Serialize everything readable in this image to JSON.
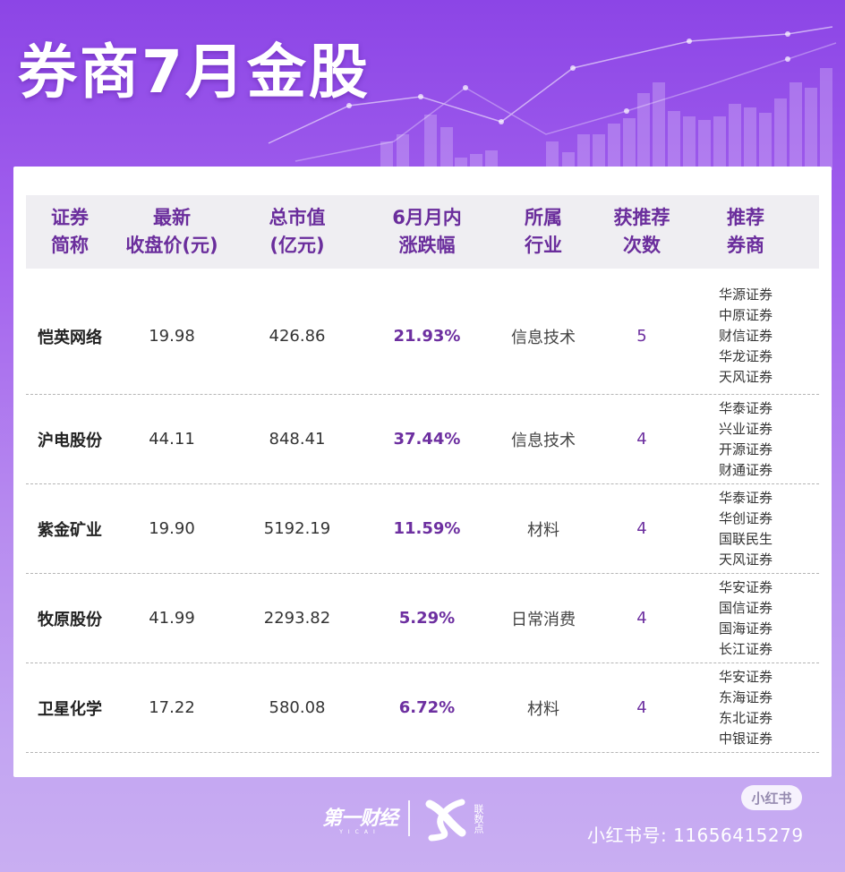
{
  "title": "券商7月金股",
  "table": {
    "headers": [
      [
        "证券",
        "简称"
      ],
      [
        "最新",
        "收盘价(元)"
      ],
      [
        "总市值",
        "(亿元)"
      ],
      [
        "6月月内",
        "涨跌幅"
      ],
      [
        "所属",
        "行业"
      ],
      [
        "获推荐",
        "次数"
      ],
      [
        "推荐",
        "券商"
      ]
    ],
    "rows": [
      {
        "name": "恺英网络",
        "price": "19.98",
        "cap": "426.86",
        "change": "21.93%",
        "industry": "信息技术",
        "count": "5",
        "brokers": [
          "华源证券",
          "中原证券",
          "财信证券",
          "华龙证券",
          "天风证券"
        ]
      },
      {
        "name": "沪电股份",
        "price": "44.11",
        "cap": "848.41",
        "change": "37.44%",
        "industry": "信息技术",
        "count": "4",
        "brokers": [
          "华泰证券",
          "兴业证券",
          "开源证券",
          "财通证券"
        ]
      },
      {
        "name": "紫金矿业",
        "price": "19.90",
        "cap": "5192.19",
        "change": "11.59%",
        "industry": "材料",
        "count": "4",
        "brokers": [
          "华泰证券",
          "华创证券",
          "国联民生",
          "天风证券"
        ]
      },
      {
        "name": "牧原股份",
        "price": "41.99",
        "cap": "2293.82",
        "change": "5.29%",
        "industry": "日常消费",
        "count": "4",
        "brokers": [
          "华安证券",
          "国信证券",
          "国海证券",
          "长江证券"
        ]
      },
      {
        "name": "卫星化学",
        "price": "17.22",
        "cap": "580.08",
        "change": "6.72%",
        "industry": "材料",
        "count": "4",
        "brokers": [
          "华安证券",
          "东海证券",
          "东北证券",
          "中银证券"
        ]
      }
    ]
  },
  "footer": {
    "logo_main": "第一财经",
    "logo_sub": "YICAI",
    "logo2_text": "联数点",
    "badge": "小红书",
    "xhs_id": "小红书号: 11656415279"
  }
}
